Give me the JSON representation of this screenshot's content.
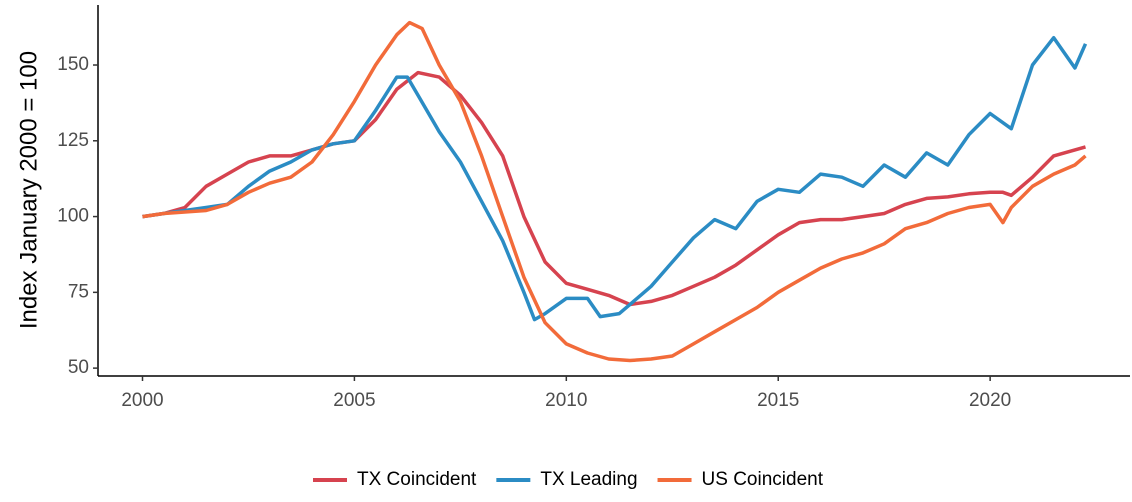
{
  "chart_data": {
    "type": "line",
    "y_label": "Index January 2000 = 100",
    "xlim": [
      1998.95,
      2023.3
    ],
    "ylim": [
      47.4,
      169.8
    ],
    "xticks": [
      2000,
      2005,
      2010,
      2015,
      2020
    ],
    "yticks": [
      50,
      75,
      100,
      125,
      150
    ],
    "grid": false,
    "legend": "bottom",
    "series": [
      {
        "name": "TX Coincident",
        "color": "#d6434f",
        "x": [
          2000,
          2000.5,
          2001,
          2001.5,
          2002,
          2002.5,
          2003,
          2003.5,
          2004,
          2004.5,
          2005,
          2005.5,
          2006,
          2006.5,
          2007,
          2007.5,
          2008,
          2008.5,
          2009,
          2009.5,
          2010,
          2010.5,
          2011,
          2011.5,
          2012,
          2012.5,
          2013,
          2013.5,
          2014,
          2014.5,
          2015,
          2015.5,
          2016,
          2016.5,
          2017,
          2017.5,
          2018,
          2018.5,
          2019,
          2019.5,
          2020,
          2020.3,
          2020.5,
          2021,
          2021.5,
          2022,
          2022.25
        ],
        "values": [
          100,
          101,
          103,
          110,
          114,
          118,
          120,
          120,
          122,
          124,
          125,
          132,
          142,
          147.5,
          146,
          140,
          131,
          120,
          100,
          85,
          78,
          76,
          74,
          71,
          72,
          74,
          77,
          80,
          84,
          89,
          94,
          98,
          99,
          99,
          100,
          101,
          104,
          106,
          106.5,
          107.5,
          108,
          108,
          107,
          113,
          120,
          122,
          123
        ]
      },
      {
        "name": "TX Leading",
        "color": "#2b8cc4",
        "x": [
          2000,
          2000.5,
          2001,
          2001.5,
          2002,
          2002.5,
          2003,
          2003.5,
          2004,
          2004.5,
          2005,
          2005.5,
          2006,
          2006.25,
          2006.5,
          2007,
          2007.5,
          2008,
          2008.5,
          2009,
          2009.25,
          2009.5,
          2010,
          2010.5,
          2010.8,
          2011.25,
          2011.75,
          2012,
          2012.5,
          2013,
          2013.5,
          2014,
          2014.5,
          2015,
          2015.5,
          2016,
          2016.5,
          2017,
          2017.5,
          2018,
          2018.5,
          2019,
          2019.5,
          2020,
          2020.5,
          2021,
          2021.5,
          2022,
          2022.25
        ],
        "values": [
          100,
          101,
          102,
          103,
          104,
          110,
          115,
          118,
          122,
          124,
          125,
          135,
          146,
          146,
          140,
          128,
          118,
          105,
          92,
          75,
          66,
          68,
          73,
          73,
          67,
          68,
          74,
          77,
          85,
          93,
          99,
          96,
          105,
          109,
          108,
          114,
          113,
          110,
          117,
          113,
          121,
          117,
          127,
          134,
          129,
          150,
          159,
          149,
          157
        ]
      },
      {
        "name": "US Coincident",
        "color": "#f26b3a",
        "x": [
          2000,
          2000.5,
          2001,
          2001.5,
          2002,
          2002.5,
          2003,
          2003.5,
          2004,
          2004.5,
          2005,
          2005.5,
          2006,
          2006.3,
          2006.6,
          2007,
          2007.5,
          2008,
          2008.5,
          2009,
          2009.5,
          2010,
          2010.5,
          2011,
          2011.5,
          2012,
          2012.5,
          2013,
          2013.5,
          2014,
          2014.5,
          2015,
          2015.5,
          2016,
          2016.5,
          2017,
          2017.5,
          2018,
          2018.5,
          2019,
          2019.5,
          2020,
          2020.3,
          2020.5,
          2021,
          2021.5,
          2022,
          2022.25
        ],
        "values": [
          100,
          101,
          101.5,
          102,
          104,
          108,
          111,
          113,
          118,
          127,
          138,
          150,
          160,
          164,
          162,
          150,
          138,
          120,
          100,
          80,
          65,
          58,
          55,
          53,
          52.5,
          53,
          54,
          58,
          62,
          66,
          70,
          75,
          79,
          83,
          86,
          88,
          91,
          96,
          98,
          101,
          103,
          104,
          98,
          103,
          110,
          114,
          117,
          120
        ]
      }
    ]
  }
}
